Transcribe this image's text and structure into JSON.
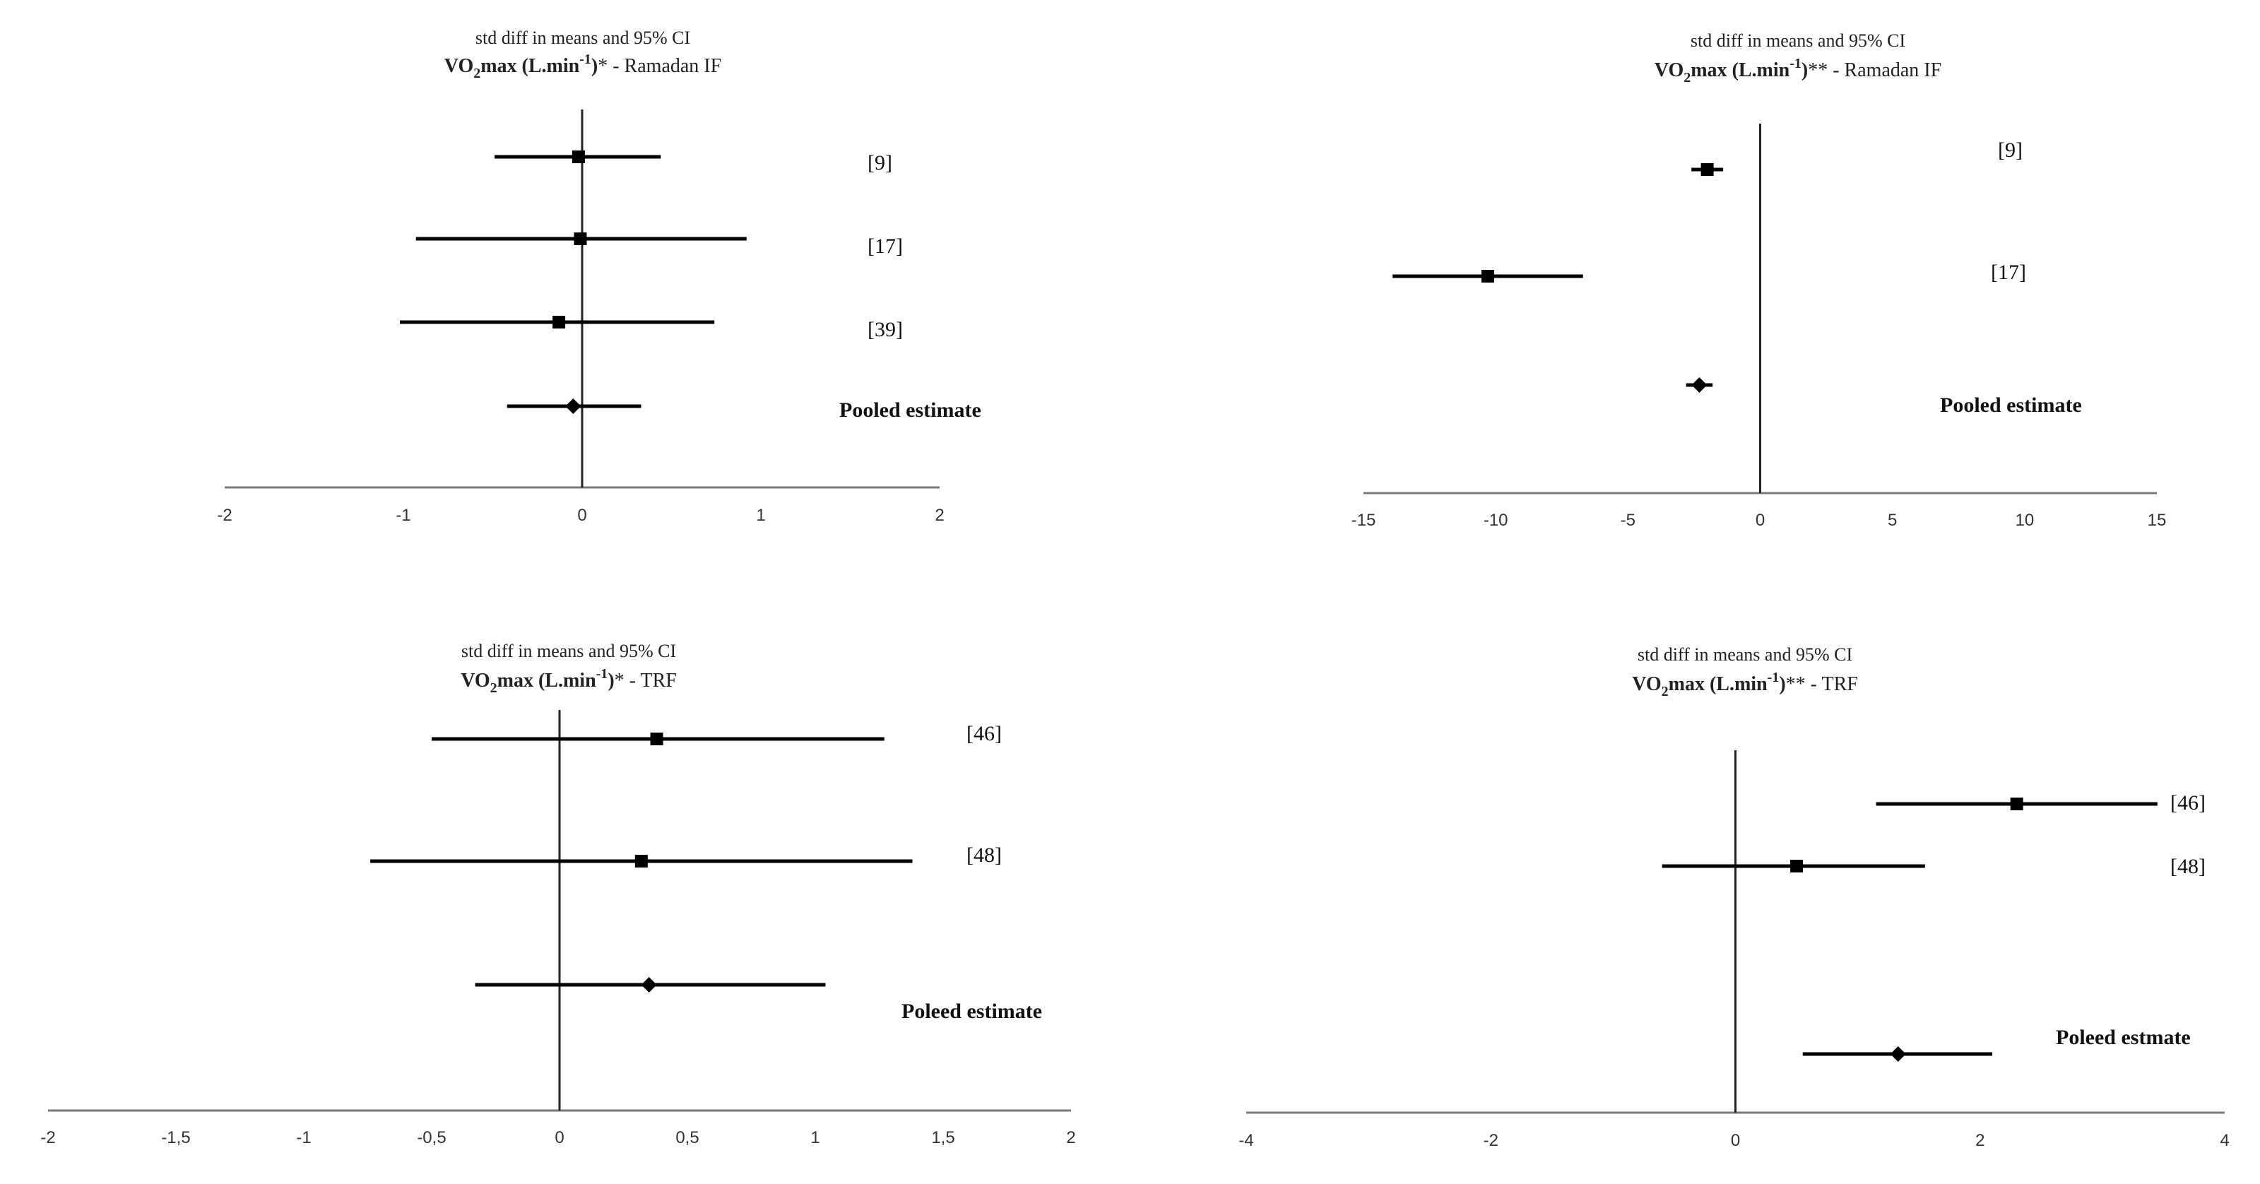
{
  "chart_data": [
    {
      "type": "forest",
      "title_line1": "std diff in means and 95% CI",
      "title_bold": "VO",
      "title_sub": "2",
      "title_bold2": "max  (L.min",
      "title_sup": "-1",
      "title_bold3": ")",
      "title_suffix": "*  - Ramadan IF",
      "xlim": [
        -2,
        2
      ],
      "xticks": [
        "-2",
        "-1",
        "0",
        "1",
        "2"
      ],
      "xtick_values": [
        -2,
        -1,
        0,
        1,
        2
      ],
      "studies": [
        {
          "label": "[9]",
          "est": -0.02,
          "lo": -0.49,
          "hi": 0.44,
          "kind": "square"
        },
        {
          "label": "[17]",
          "est": -0.01,
          "lo": -0.93,
          "hi": 0.92,
          "kind": "square"
        },
        {
          "label": "[39]",
          "est": -0.13,
          "lo": -1.02,
          "hi": 0.74,
          "kind": "square"
        },
        {
          "label": "Pooled estimate",
          "est": -0.05,
          "lo": -0.42,
          "hi": 0.33,
          "kind": "diamond",
          "pooled": true
        }
      ]
    },
    {
      "type": "forest",
      "title_line1": "std diff in means and 95% CI",
      "title_bold": "VO",
      "title_sub": "2",
      "title_bold2": "max  (L.min",
      "title_sup": "-1",
      "title_bold3": ")",
      "title_suffix": "**  - Ramadan IF",
      "xlim": [
        -15,
        15
      ],
      "xticks": [
        "-15",
        "-10",
        "-5",
        "0",
        "5",
        "10",
        "15"
      ],
      "xtick_values": [
        -15,
        -10,
        -5,
        0,
        5,
        10,
        15
      ],
      "studies": [
        {
          "label": "[9]",
          "est": -2.0,
          "lo": -2.6,
          "hi": -1.4,
          "kind": "square"
        },
        {
          "label": "[17]",
          "est": -10.3,
          "lo": -13.9,
          "hi": -6.7,
          "kind": "square"
        },
        {
          "label": "Pooled estimate",
          "est": -2.3,
          "lo": -2.8,
          "hi": -1.8,
          "kind": "diamond",
          "pooled": true
        }
      ]
    },
    {
      "type": "forest",
      "title_line1": "std diff in means and 95% CI",
      "title_bold": "VO",
      "title_sub": "2",
      "title_bold2": "max  (L.min",
      "title_sup": "-1",
      "title_bold3": ")",
      "title_suffix": "*  - TRF",
      "xlim": [
        -2,
        2
      ],
      "xticks": [
        "-2",
        "-1,5",
        "-1",
        "-0,5",
        "0",
        "0,5",
        "1",
        "1,5",
        "2"
      ],
      "xtick_values": [
        -2,
        -1.5,
        -1,
        -0.5,
        0,
        0.5,
        1,
        1.5,
        2
      ],
      "studies": [
        {
          "label": "[46]",
          "est": 0.38,
          "lo": -0.5,
          "hi": 1.27,
          "kind": "square"
        },
        {
          "label": "[48]",
          "est": 0.32,
          "lo": -0.74,
          "hi": 1.38,
          "kind": "square"
        },
        {
          "label": "Poleed estimate",
          "est": 0.35,
          "lo": -0.33,
          "hi": 1.04,
          "kind": "diamond",
          "pooled": true
        }
      ]
    },
    {
      "type": "forest",
      "title_line1": "std diff in means and 95% CI",
      "title_bold": "VO",
      "title_sub": "2",
      "title_bold2": "max  (L.min",
      "title_sup": "-1",
      "title_bold3": ")",
      "title_suffix": "** - TRF",
      "xlim": [
        -4,
        4
      ],
      "xticks": [
        "-4",
        "-2",
        "0",
        "2",
        "4"
      ],
      "xtick_values": [
        -4,
        -2,
        0,
        2,
        4
      ],
      "studies": [
        {
          "label": "[46]",
          "est": 2.3,
          "lo": 1.15,
          "hi": 3.45,
          "kind": "square"
        },
        {
          "label": "[48]",
          "est": 0.5,
          "lo": -0.6,
          "hi": 1.55,
          "kind": "square"
        },
        {
          "label": "Poleed estmate",
          "est": 1.33,
          "lo": 0.55,
          "hi": 2.1,
          "kind": "diamond",
          "pooled": true
        }
      ]
    }
  ]
}
